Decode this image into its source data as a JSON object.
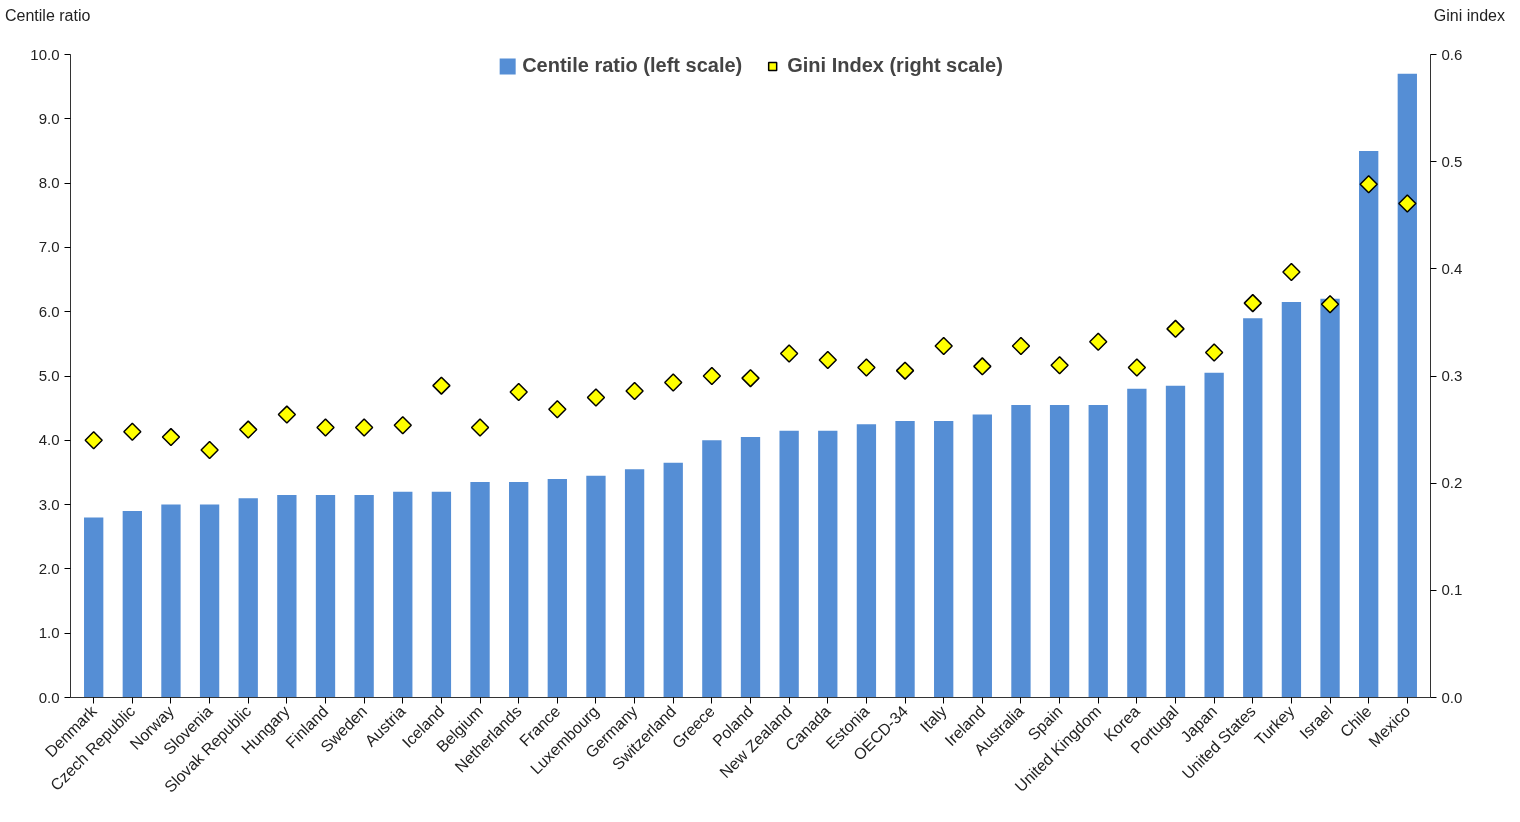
{
  "chart_data": {
    "type": "bar",
    "ylabel": "Centile ratio",
    "y2label": "Gini index",
    "categories": [
      "Denmark",
      "Czech Republic",
      "Norway",
      "Slovenia",
      "Slovak Republic",
      "Hungary",
      "Finland",
      "Sweden",
      "Austria",
      "Iceland",
      "Belgium",
      "Netherlands",
      "France",
      "Luxembourg",
      "Germany",
      "Switzerland",
      "Greece",
      "Poland",
      "New Zealand",
      "Canada",
      "Estonia",
      "OECD-34",
      "Italy",
      "Ireland",
      "Australia",
      "Spain",
      "United Kingdom",
      "Korea",
      "Portugal",
      "Japan",
      "United States",
      "Turkey",
      "Israel",
      "Chile",
      "Mexico"
    ],
    "series": [
      {
        "name": "Centile ratio (left scale)",
        "color": "#558ed5",
        "values": [
          2.8,
          2.9,
          3.0,
          3.0,
          3.1,
          3.15,
          3.15,
          3.15,
          3.2,
          3.2,
          3.35,
          3.35,
          3.4,
          3.45,
          3.55,
          3.65,
          4.0,
          4.05,
          4.15,
          4.15,
          4.25,
          4.3,
          4.3,
          4.4,
          4.55,
          4.55,
          4.55,
          4.8,
          4.85,
          5.05,
          5.9,
          6.15,
          6.2,
          8.5,
          9.7
        ]
      },
      {
        "name": "Gini Index (right scale)",
        "type": "scatter",
        "axis": "y2",
        "color": "#ffff00",
        "values": [
          0.24,
          0.248,
          0.243,
          0.231,
          0.25,
          0.264,
          0.252,
          0.252,
          0.254,
          0.291,
          0.252,
          0.285,
          0.269,
          0.28,
          0.286,
          0.294,
          0.3,
          0.298,
          0.321,
          0.315,
          0.308,
          0.305,
          0.328,
          0.309,
          0.328,
          0.31,
          0.332,
          0.308,
          0.344,
          0.322,
          0.368,
          0.397,
          0.367,
          0.479,
          0.461
        ]
      }
    ],
    "marker": "diamond",
    "ylim": [
      0,
      10
    ],
    "yticks": [
      {
        "value": 0,
        "label": "0.0"
      },
      {
        "value": 1,
        "label": "1.0"
      },
      {
        "value": 2,
        "label": "2.0"
      },
      {
        "value": 3,
        "label": "3.0"
      },
      {
        "value": 4,
        "label": "4.0"
      },
      {
        "value": 5,
        "label": "5.0"
      },
      {
        "value": 6,
        "label": "6.0"
      },
      {
        "value": 7,
        "label": "7.0"
      },
      {
        "value": 8,
        "label": "8.0"
      },
      {
        "value": 9,
        "label": "9.0"
      },
      {
        "value": 10,
        "label": "10.0"
      }
    ],
    "y2lim": [
      0,
      0.6
    ],
    "y2ticks": [
      {
        "value": 0,
        "label": "0.0"
      },
      0.1,
      0.2,
      0.3,
      0.4,
      0.5,
      0.6
    ],
    "legend": "top",
    "grid": false
  }
}
